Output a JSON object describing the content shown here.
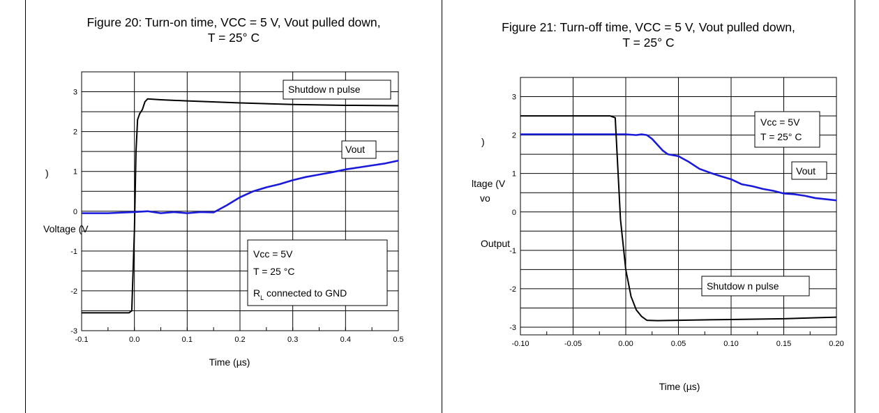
{
  "charts": {
    "left": {
      "title_line1": "Figure 20: Turn-on time, VCC = 5 V, Vout pulled down,",
      "title_line2": "T = 25° C",
      "xlabel": "Time (µs)",
      "ylabel_fragments": [
        ")",
        "Voltage (V"
      ],
      "box_pulse": "Shutdow n pulse",
      "box_vout": "Vout",
      "box_cond_line1": "Vcc = 5V",
      "box_cond_line2": "T =  25 °C",
      "box_cond_line3_R": "R",
      "box_cond_line3_sub": "L",
      "box_cond_line3_rest": " connected to GND",
      "xticklabels": [
        "-0.1",
        "0.0",
        "0.1",
        "0.2",
        "0.3",
        "0.4",
        "0.5"
      ],
      "yticklabels": [
        "3",
        "2",
        "1",
        "0",
        "-1",
        "-2",
        "-3"
      ]
    },
    "right": {
      "title_line1": "Figure 21: Turn-off time, VCC = 5 V, Vout pulled down,",
      "title_line2": "T = 25° C",
      "xlabel": "Time (µs)",
      "ylabel_fragments": [
        ")",
        "ltage (V",
        "vo",
        "Output"
      ],
      "box_cond_line1": "Vcc = 5V",
      "box_cond_line2": "T =  25° C",
      "box_vout": "Vout",
      "box_pulse": "Shutdow n pulse",
      "xticklabels": [
        "-0.10",
        "-0.05",
        "0.00",
        "0.05",
        "0.10",
        "0.15",
        "0.20"
      ],
      "yticklabels": [
        "3",
        "2",
        "1",
        "0",
        "-1",
        "-2",
        "-3"
      ]
    }
  },
  "chart_data": [
    {
      "type": "line",
      "title": "Figure 20: Turn-on time, VCC = 5 V, Vout pulled down, T = 25° C",
      "xlabel": "Time (µs)",
      "ylabel": "Voltage (V)",
      "xlim": [
        -0.1,
        0.5
      ],
      "ylim": [
        -3,
        3.5
      ],
      "x_major_step": 0.1,
      "x_minor_step": 0.05,
      "y_major_step": 1,
      "y_minor_step": 0.5,
      "grid": true,
      "series": [
        {
          "name": "Shutdown pulse",
          "color": "#000000",
          "x": [
            -0.1,
            -0.05,
            -0.01,
            -0.005,
            0.0,
            0.003,
            0.006,
            0.01,
            0.015,
            0.02,
            0.025,
            0.05,
            0.1,
            0.2,
            0.3,
            0.4,
            0.5
          ],
          "y": [
            -2.55,
            -2.55,
            -2.55,
            -2.5,
            -0.5,
            1.5,
            2.3,
            2.45,
            2.55,
            2.75,
            2.82,
            2.8,
            2.77,
            2.72,
            2.68,
            2.66,
            2.65
          ]
        },
        {
          "name": "Vout",
          "color": "#1a1adc",
          "x": [
            -0.1,
            -0.05,
            0.0,
            0.025,
            0.05,
            0.075,
            0.1,
            0.125,
            0.15,
            0.175,
            0.2,
            0.225,
            0.25,
            0.275,
            0.3,
            0.325,
            0.35,
            0.375,
            0.4,
            0.425,
            0.45,
            0.475,
            0.5
          ],
          "y": [
            -0.05,
            -0.05,
            -0.02,
            0.0,
            -0.05,
            -0.02,
            -0.05,
            -0.02,
            -0.03,
            0.15,
            0.35,
            0.5,
            0.6,
            0.68,
            0.78,
            0.86,
            0.92,
            0.98,
            1.05,
            1.1,
            1.15,
            1.2,
            1.27
          ]
        }
      ]
    },
    {
      "type": "line",
      "title": "Figure 21: Turn-off time, VCC = 5 V, Vout pulled down, T = 25° C",
      "xlabel": "Time (µs)",
      "ylabel": "Output voltage (V)",
      "xlim": [
        -0.1,
        0.2
      ],
      "ylim": [
        -3.2,
        3.5
      ],
      "x_major_step": 0.05,
      "x_minor_step": 0.025,
      "y_major_step": 1,
      "y_minor_step": 0.5,
      "grid": true,
      "series": [
        {
          "name": "Vout",
          "color": "#1a1adc",
          "x": [
            -0.1,
            -0.05,
            0.0,
            0.01,
            0.015,
            0.02,
            0.025,
            0.03,
            0.035,
            0.04,
            0.05,
            0.06,
            0.07,
            0.08,
            0.09,
            0.1,
            0.11,
            0.12,
            0.13,
            0.14,
            0.15,
            0.16,
            0.17,
            0.18,
            0.19,
            0.2
          ],
          "y": [
            2.02,
            2.02,
            2.02,
            2.0,
            2.02,
            2.0,
            1.9,
            1.75,
            1.6,
            1.5,
            1.45,
            1.3,
            1.12,
            1.02,
            0.93,
            0.85,
            0.72,
            0.67,
            0.6,
            0.55,
            0.48,
            0.46,
            0.42,
            0.36,
            0.33,
            0.3
          ]
        },
        {
          "name": "Shutdown pulse",
          "color": "#000000",
          "x": [
            -0.1,
            -0.05,
            -0.015,
            -0.01,
            -0.005,
            0.0,
            0.005,
            0.01,
            0.015,
            0.02,
            0.03,
            0.05,
            0.1,
            0.15,
            0.2
          ],
          "y": [
            2.5,
            2.5,
            2.5,
            2.45,
            -0.2,
            -1.5,
            -2.2,
            -2.55,
            -2.72,
            -2.82,
            -2.83,
            -2.82,
            -2.8,
            -2.78,
            -2.74
          ]
        }
      ]
    }
  ]
}
